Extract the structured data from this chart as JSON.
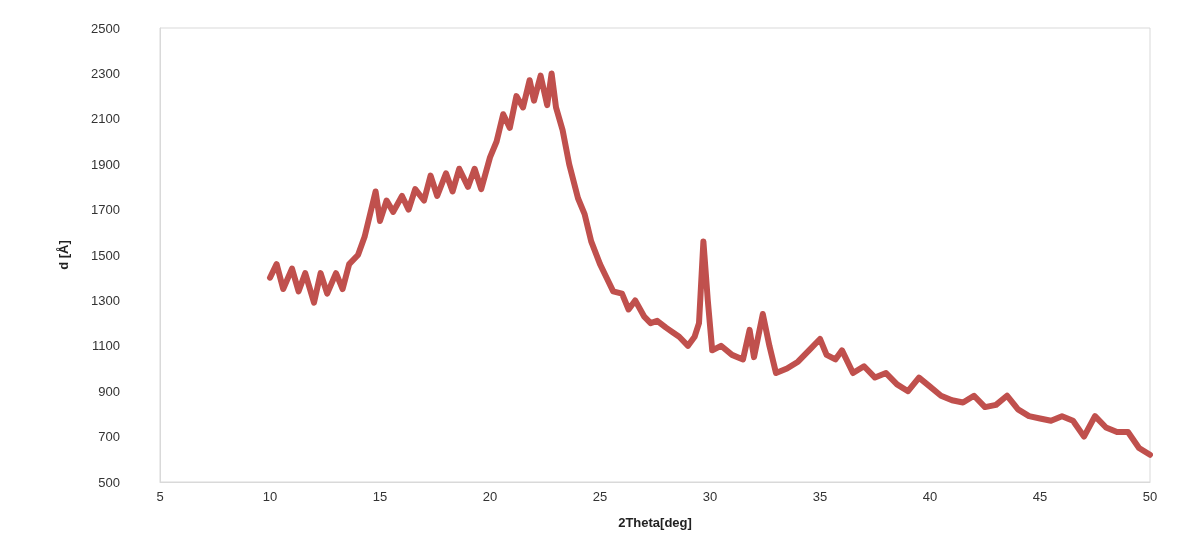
{
  "chart_data": {
    "type": "line",
    "xlabel": "2Theta[deg]",
    "ylabel": "d [Å]",
    "xlim": [
      5,
      50
    ],
    "xticks": [
      5,
      10,
      15,
      20,
      25,
      30,
      35,
      40,
      45,
      50
    ],
    "ylim": [
      500,
      2500
    ],
    "yticks": [
      500,
      700,
      900,
      1100,
      1300,
      1500,
      1700,
      1900,
      2100,
      2300,
      2500
    ],
    "grid": false,
    "marker": "none",
    "line_style": "solid",
    "series": [
      {
        "color": "#c0504d",
        "x": [
          10,
          10.3,
          10.6,
          11,
          11.3,
          11.6,
          12,
          12.3,
          12.6,
          13,
          13.3,
          13.6,
          14,
          14.3,
          14.6,
          14.8,
          15,
          15.3,
          15.6,
          16,
          16.3,
          16.6,
          17,
          17.3,
          17.6,
          18,
          18.3,
          18.6,
          19,
          19.3,
          19.6,
          20,
          20.3,
          20.6,
          20.9,
          21.2,
          21.5,
          21.8,
          22,
          22.3,
          22.6,
          22.8,
          23,
          23.3,
          23.6,
          24,
          24.3,
          24.6,
          25,
          25.3,
          25.6,
          26,
          26.3,
          26.6,
          27,
          27.3,
          27.6,
          28,
          28.3,
          28.6,
          29,
          29.3,
          29.5,
          29.7,
          29.9,
          30.1,
          30.5,
          31,
          31.5,
          31.8,
          32,
          32.4,
          32.7,
          33,
          33.5,
          34,
          34.5,
          35,
          35.3,
          35.7,
          36,
          36.5,
          37,
          37.5,
          38,
          38.5,
          39,
          39.5,
          40,
          40.5,
          41,
          41.5,
          42,
          42.5,
          43,
          43.5,
          44,
          44.5,
          45,
          45.5,
          46,
          46.5,
          47,
          47.5,
          48,
          48.5,
          49,
          49.5,
          50
        ],
        "values": [
          1400,
          1460,
          1350,
          1440,
          1340,
          1420,
          1290,
          1420,
          1330,
          1420,
          1350,
          1460,
          1500,
          1580,
          1700,
          1780,
          1650,
          1740,
          1690,
          1760,
          1700,
          1790,
          1740,
          1850,
          1760,
          1860,
          1780,
          1880,
          1800,
          1880,
          1790,
          1930,
          2000,
          2120,
          2060,
          2200,
          2150,
          2270,
          2180,
          2290,
          2160,
          2300,
          2150,
          2050,
          1900,
          1750,
          1680,
          1560,
          1460,
          1400,
          1340,
          1330,
          1260,
          1300,
          1230,
          1200,
          1210,
          1180,
          1160,
          1140,
          1100,
          1140,
          1200,
          1560,
          1300,
          1080,
          1100,
          1060,
          1040,
          1170,
          1050,
          1240,
          1100,
          980,
          1000,
          1030,
          1080,
          1130,
          1060,
          1040,
          1080,
          980,
          1010,
          960,
          980,
          930,
          900,
          960,
          920,
          880,
          860,
          850,
          880,
          830,
          840,
          880,
          820,
          790,
          780,
          770,
          790,
          770,
          700,
          790,
          740,
          720,
          720,
          650,
          620
        ]
      }
    ]
  }
}
